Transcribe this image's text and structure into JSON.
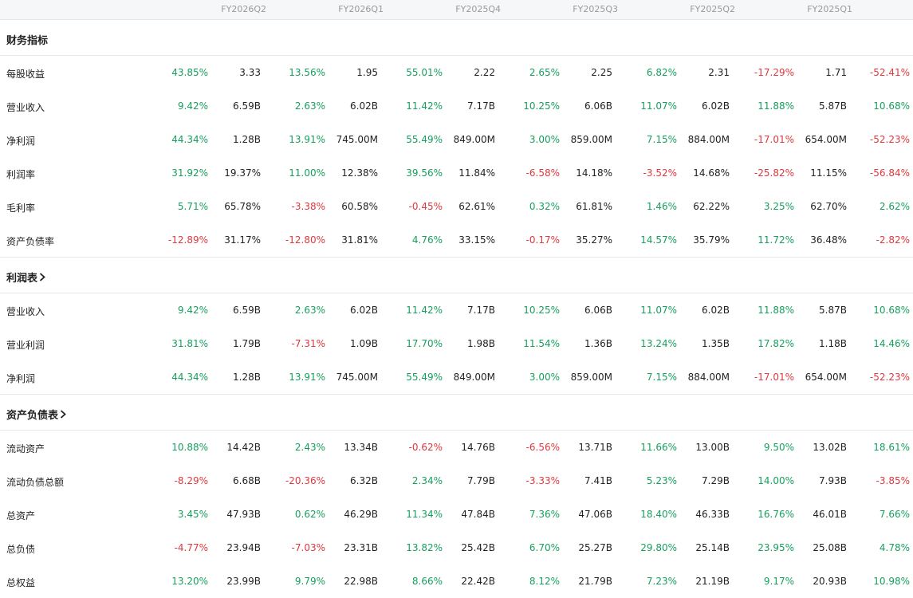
{
  "periods": [
    "FY2026Q2",
    "FY2026Q1",
    "FY2025Q4",
    "FY2025Q3",
    "FY2025Q2",
    "FY2025Q1"
  ],
  "colors": {
    "up": "#17a05d",
    "down": "#e0383e"
  },
  "sections": [
    {
      "title": "财务指标",
      "has_link": false,
      "rows": [
        {
          "label": "每股收益",
          "cells": [
            [
              "43.85%",
              "3.33"
            ],
            [
              "13.56%",
              "1.95"
            ],
            [
              "55.01%",
              "2.22"
            ],
            [
              "2.65%",
              "2.25"
            ],
            [
              "6.82%",
              "2.31"
            ],
            [
              "-17.29%",
              "1.71"
            ],
            [
              "-52.41%",
              ""
            ]
          ]
        },
        {
          "label": "营业收入",
          "cells": [
            [
              "9.42%",
              "6.59B"
            ],
            [
              "2.63%",
              "6.02B"
            ],
            [
              "11.42%",
              "7.17B"
            ],
            [
              "10.25%",
              "6.06B"
            ],
            [
              "11.07%",
              "6.02B"
            ],
            [
              "11.88%",
              "5.87B"
            ],
            [
              "10.68%",
              ""
            ]
          ]
        },
        {
          "label": "净利润",
          "cells": [
            [
              "44.34%",
              "1.28B"
            ],
            [
              "13.91%",
              "745.00M"
            ],
            [
              "55.49%",
              "849.00M"
            ],
            [
              "3.00%",
              "859.00M"
            ],
            [
              "7.15%",
              "884.00M"
            ],
            [
              "-17.01%",
              "654.00M"
            ],
            [
              "-52.23%",
              ""
            ]
          ]
        },
        {
          "label": "利润率",
          "cells": [
            [
              "31.92%",
              "19.37%"
            ],
            [
              "11.00%",
              "12.38%"
            ],
            [
              "39.56%",
              "11.84%"
            ],
            [
              "-6.58%",
              "14.18%"
            ],
            [
              "-3.52%",
              "14.68%"
            ],
            [
              "-25.82%",
              "11.15%"
            ],
            [
              "-56.84%",
              ""
            ]
          ]
        },
        {
          "label": "毛利率",
          "cells": [
            [
              "5.71%",
              "65.78%"
            ],
            [
              "-3.38%",
              "60.58%"
            ],
            [
              "-0.45%",
              "62.61%"
            ],
            [
              "0.32%",
              "61.81%"
            ],
            [
              "1.46%",
              "62.22%"
            ],
            [
              "3.25%",
              "62.70%"
            ],
            [
              "2.62%",
              ""
            ]
          ]
        },
        {
          "label": "资产负债率",
          "cells": [
            [
              "-12.89%",
              "31.17%"
            ],
            [
              "-12.80%",
              "31.81%"
            ],
            [
              "4.76%",
              "33.15%"
            ],
            [
              "-0.17%",
              "35.27%"
            ],
            [
              "14.57%",
              "35.79%"
            ],
            [
              "11.72%",
              "36.48%"
            ],
            [
              "-2.82%",
              ""
            ]
          ]
        }
      ]
    },
    {
      "title": "利润表",
      "has_link": true,
      "rows": [
        {
          "label": "营业收入",
          "cells": [
            [
              "9.42%",
              "6.59B"
            ],
            [
              "2.63%",
              "6.02B"
            ],
            [
              "11.42%",
              "7.17B"
            ],
            [
              "10.25%",
              "6.06B"
            ],
            [
              "11.07%",
              "6.02B"
            ],
            [
              "11.88%",
              "5.87B"
            ],
            [
              "10.68%",
              ""
            ]
          ]
        },
        {
          "label": "营业利润",
          "cells": [
            [
              "31.81%",
              "1.79B"
            ],
            [
              "-7.31%",
              "1.09B"
            ],
            [
              "17.70%",
              "1.98B"
            ],
            [
              "11.54%",
              "1.36B"
            ],
            [
              "13.24%",
              "1.35B"
            ],
            [
              "17.82%",
              "1.18B"
            ],
            [
              "14.46%",
              ""
            ]
          ]
        },
        {
          "label": "净利润",
          "cells": [
            [
              "44.34%",
              "1.28B"
            ],
            [
              "13.91%",
              "745.00M"
            ],
            [
              "55.49%",
              "849.00M"
            ],
            [
              "3.00%",
              "859.00M"
            ],
            [
              "7.15%",
              "884.00M"
            ],
            [
              "-17.01%",
              "654.00M"
            ],
            [
              "-52.23%",
              ""
            ]
          ]
        }
      ]
    },
    {
      "title": "资产负债表",
      "has_link": true,
      "rows": [
        {
          "label": "流动资产",
          "cells": [
            [
              "10.88%",
              "14.42B"
            ],
            [
              "2.43%",
              "13.34B"
            ],
            [
              "-0.62%",
              "14.76B"
            ],
            [
              "-6.56%",
              "13.71B"
            ],
            [
              "11.66%",
              "13.00B"
            ],
            [
              "9.50%",
              "13.02B"
            ],
            [
              "18.61%",
              ""
            ]
          ]
        },
        {
          "label": "流动负债总额",
          "cells": [
            [
              "-8.29%",
              "6.68B"
            ],
            [
              "-20.36%",
              "6.32B"
            ],
            [
              "2.34%",
              "7.79B"
            ],
            [
              "-3.33%",
              "7.41B"
            ],
            [
              "5.23%",
              "7.29B"
            ],
            [
              "14.00%",
              "7.93B"
            ],
            [
              "-3.85%",
              ""
            ]
          ]
        },
        {
          "label": "总资产",
          "cells": [
            [
              "3.45%",
              "47.93B"
            ],
            [
              "0.62%",
              "46.29B"
            ],
            [
              "11.34%",
              "47.84B"
            ],
            [
              "7.36%",
              "47.06B"
            ],
            [
              "18.40%",
              "46.33B"
            ],
            [
              "16.76%",
              "46.01B"
            ],
            [
              "7.66%",
              ""
            ]
          ]
        },
        {
          "label": "总负债",
          "cells": [
            [
              "-4.77%",
              "23.94B"
            ],
            [
              "-7.03%",
              "23.31B"
            ],
            [
              "13.82%",
              "25.42B"
            ],
            [
              "6.70%",
              "25.27B"
            ],
            [
              "29.80%",
              "25.14B"
            ],
            [
              "23.95%",
              "25.08B"
            ],
            [
              "4.78%",
              ""
            ]
          ]
        },
        {
          "label": "总权益",
          "cells": [
            [
              "13.20%",
              "23.99B"
            ],
            [
              "9.79%",
              "22.98B"
            ],
            [
              "8.66%",
              "22.42B"
            ],
            [
              "8.12%",
              "21.79B"
            ],
            [
              "7.23%",
              "21.19B"
            ],
            [
              "9.17%",
              "20.93B"
            ],
            [
              "10.98%",
              ""
            ]
          ]
        }
      ]
    }
  ]
}
